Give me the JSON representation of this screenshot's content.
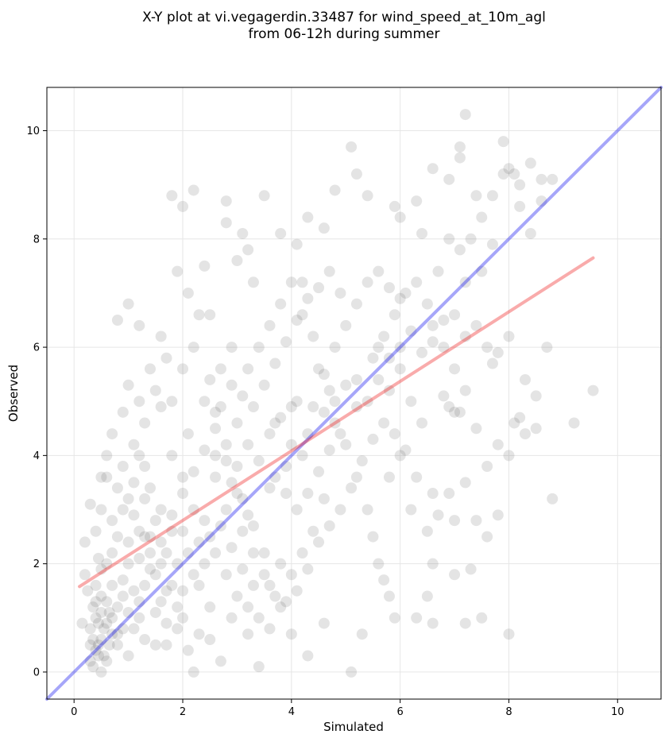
{
  "chart_data": {
    "type": "scatter",
    "title": "X-Y plot at vi.vegagerdin.33487 for wind_speed_at_10m_agl",
    "subtitle": "from 06-12h during summer",
    "xlabel": "Simulated",
    "ylabel": "Observed",
    "xlim": [
      -0.5,
      10.8
    ],
    "ylim": [
      -0.5,
      10.8
    ],
    "xticks": [
      0,
      2,
      4,
      6,
      8,
      10
    ],
    "yticks": [
      0,
      2,
      4,
      6,
      8,
      10
    ],
    "grid": true,
    "legend": "none",
    "point_color": "#555555",
    "identity_line": {
      "from": [
        -0.5,
        -0.5
      ],
      "to": [
        10.8,
        10.8
      ],
      "color": "#0000ee"
    },
    "regression_line": {
      "from": [
        0.1,
        1.58
      ],
      "to": [
        9.55,
        7.65
      ],
      "color": "#ee0000"
    },
    "points": [
      [
        0.3,
        0.8
      ],
      [
        0.4,
        1.0
      ],
      [
        0.5,
        0.6
      ],
      [
        0.45,
        0.9
      ],
      [
        0.35,
        1.2
      ],
      [
        0.5,
        1.4
      ],
      [
        0.6,
        0.9
      ],
      [
        0.4,
        0.4
      ],
      [
        0.3,
        0.2
      ],
      [
        0.55,
        0.3
      ],
      [
        0.2,
        1.8
      ],
      [
        0.25,
        1.5
      ],
      [
        0.45,
        2.1
      ],
      [
        0.6,
        2.0
      ],
      [
        0.7,
        1.6
      ],
      [
        0.8,
        1.2
      ],
      [
        0.9,
        0.8
      ],
      [
        0.65,
        0.5
      ],
      [
        0.35,
        0.1
      ],
      [
        0.5,
        0.0
      ],
      [
        0.15,
        0.9
      ],
      [
        0.4,
        2.6
      ],
      [
        0.5,
        3.0
      ],
      [
        0.7,
        2.8
      ],
      [
        0.8,
        3.4
      ],
      [
        0.9,
        3.8
      ],
      [
        1.0,
        3.2
      ],
      [
        0.6,
        3.6
      ],
      [
        0.3,
        3.1
      ],
      [
        0.2,
        2.4
      ],
      [
        1.0,
        2.0
      ],
      [
        1.1,
        1.5
      ],
      [
        1.2,
        1.0
      ],
      [
        1.3,
        0.6
      ],
      [
        1.0,
        0.3
      ],
      [
        1.2,
        2.6
      ],
      [
        1.4,
        2.2
      ],
      [
        1.5,
        1.8
      ],
      [
        1.6,
        1.3
      ],
      [
        1.7,
        0.9
      ],
      [
        1.4,
        3.4
      ],
      [
        1.6,
        3.0
      ],
      [
        1.8,
        2.6
      ],
      [
        1.9,
        2.0
      ],
      [
        2.0,
        1.5
      ],
      [
        1.8,
        4.0
      ],
      [
        2.0,
        3.6
      ],
      [
        2.2,
        3.0
      ],
      [
        2.3,
        2.4
      ],
      [
        2.1,
        4.4
      ],
      [
        1.3,
        4.6
      ],
      [
        1.5,
        5.2
      ],
      [
        1.7,
        5.8
      ],
      [
        1.2,
        6.4
      ],
      [
        1.0,
        6.8
      ],
      [
        0.8,
        6.5
      ],
      [
        1.6,
        6.2
      ],
      [
        1.9,
        7.4
      ],
      [
        2.1,
        7.0
      ],
      [
        2.3,
        6.6
      ],
      [
        2.5,
        5.4
      ],
      [
        2.6,
        4.8
      ],
      [
        2.8,
        4.2
      ],
      [
        3.0,
        3.8
      ],
      [
        3.1,
        3.2
      ],
      [
        3.3,
        2.7
      ],
      [
        3.5,
        2.2
      ],
      [
        3.6,
        1.6
      ],
      [
        3.8,
        1.2
      ],
      [
        2.9,
        1.0
      ],
      [
        2.5,
        0.6
      ],
      [
        2.7,
        0.2
      ],
      [
        3.2,
        0.7
      ],
      [
        3.4,
        0.1
      ],
      [
        4.0,
        0.7
      ],
      [
        4.3,
        0.3
      ],
      [
        4.6,
        0.9
      ],
      [
        5.1,
        0.0
      ],
      [
        5.3,
        0.7
      ],
      [
        2.2,
        0.0
      ],
      [
        3.2,
        5.6
      ],
      [
        3.4,
        6.0
      ],
      [
        3.6,
        6.4
      ],
      [
        3.8,
        6.8
      ],
      [
        4.0,
        7.2
      ],
      [
        4.2,
        6.6
      ],
      [
        4.4,
        6.2
      ],
      [
        4.5,
        5.6
      ],
      [
        4.7,
        5.2
      ],
      [
        4.8,
        4.6
      ],
      [
        5.0,
        4.2
      ],
      [
        5.2,
        3.6
      ],
      [
        5.4,
        3.0
      ],
      [
        5.5,
        2.5
      ],
      [
        5.6,
        2.0
      ],
      [
        5.8,
        1.4
      ],
      [
        5.9,
        1.0
      ],
      [
        4.0,
        4.2
      ],
      [
        4.2,
        4.0
      ],
      [
        4.3,
        4.4
      ],
      [
        3.9,
        3.8
      ],
      [
        3.7,
        4.6
      ],
      [
        4.1,
        5.0
      ],
      [
        4.6,
        3.2
      ],
      [
        4.4,
        2.6
      ],
      [
        4.2,
        2.2
      ],
      [
        4.0,
        1.8
      ],
      [
        3.8,
        2.0
      ],
      [
        3.6,
        3.4
      ],
      [
        3.4,
        3.9
      ],
      [
        5.2,
        5.4
      ],
      [
        5.5,
        5.8
      ],
      [
        5.7,
        6.2
      ],
      [
        5.9,
        6.6
      ],
      [
        6.1,
        7.0
      ],
      [
        6.3,
        7.2
      ],
      [
        6.5,
        6.8
      ],
      [
        6.6,
        6.4
      ],
      [
        6.8,
        6.0
      ],
      [
        7.0,
        5.6
      ],
      [
        6.2,
        5.0
      ],
      [
        6.4,
        4.6
      ],
      [
        6.0,
        4.0
      ],
      [
        5.8,
        3.6
      ],
      [
        6.2,
        3.0
      ],
      [
        6.5,
        2.6
      ],
      [
        6.6,
        2.0
      ],
      [
        6.5,
        1.4
      ],
      [
        6.3,
        1.0
      ],
      [
        6.6,
        0.9
      ],
      [
        7.0,
        4.8
      ],
      [
        7.2,
        5.2
      ],
      [
        7.4,
        4.5
      ],
      [
        7.6,
        3.8
      ],
      [
        7.8,
        4.2
      ],
      [
        8.0,
        4.0
      ],
      [
        8.1,
        4.6
      ],
      [
        8.2,
        4.7
      ],
      [
        8.3,
        4.4
      ],
      [
        8.5,
        4.5
      ],
      [
        7.0,
        6.6
      ],
      [
        7.2,
        6.2
      ],
      [
        7.4,
        6.4
      ],
      [
        7.6,
        6.0
      ],
      [
        7.8,
        5.9
      ],
      [
        8.0,
        6.2
      ],
      [
        8.3,
        5.4
      ],
      [
        8.5,
        5.1
      ],
      [
        8.7,
        6.0
      ],
      [
        7.7,
        5.7
      ],
      [
        7.1,
        7.8
      ],
      [
        7.3,
        8.0
      ],
      [
        7.5,
        8.4
      ],
      [
        7.7,
        8.8
      ],
      [
        7.9,
        9.2
      ],
      [
        8.0,
        9.3
      ],
      [
        8.2,
        9.0
      ],
      [
        8.4,
        9.4
      ],
      [
        8.6,
        9.1
      ],
      [
        8.8,
        9.1
      ],
      [
        7.1,
        9.5
      ],
      [
        7.1,
        9.7
      ],
      [
        7.2,
        10.3
      ],
      [
        7.9,
        9.8
      ],
      [
        8.1,
        9.2
      ],
      [
        8.2,
        8.6
      ],
      [
        8.4,
        8.1
      ],
      [
        8.6,
        8.7
      ],
      [
        7.4,
        8.8
      ],
      [
        6.9,
        9.1
      ],
      [
        6.6,
        9.3
      ],
      [
        6.9,
        8.0
      ],
      [
        7.2,
        7.2
      ],
      [
        7.5,
        7.4
      ],
      [
        7.7,
        7.9
      ],
      [
        6.7,
        7.4
      ],
      [
        6.4,
        8.1
      ],
      [
        6.3,
        8.7
      ],
      [
        6.0,
        8.4
      ],
      [
        5.9,
        8.6
      ],
      [
        5.4,
        8.8
      ],
      [
        5.2,
        9.2
      ],
      [
        5.1,
        9.7
      ],
      [
        4.8,
        8.9
      ],
      [
        4.6,
        8.2
      ],
      [
        4.3,
        8.4
      ],
      [
        4.1,
        7.9
      ],
      [
        3.8,
        8.1
      ],
      [
        3.5,
        8.8
      ],
      [
        3.1,
        8.1
      ],
      [
        2.8,
        8.7
      ],
      [
        2.8,
        8.3
      ],
      [
        2.2,
        8.9
      ],
      [
        2.0,
        8.6
      ],
      [
        1.8,
        8.8
      ],
      [
        2.4,
        7.5
      ],
      [
        3.0,
        7.6
      ],
      [
        3.2,
        7.8
      ],
      [
        3.3,
        7.2
      ],
      [
        2.5,
        6.6
      ],
      [
        2.2,
        6.0
      ],
      [
        2.0,
        5.6
      ],
      [
        1.8,
        5.0
      ],
      [
        2.4,
        5.0
      ],
      [
        2.7,
        5.6
      ],
      [
        2.9,
        6.0
      ],
      [
        3.0,
        4.6
      ],
      [
        3.2,
        4.2
      ],
      [
        2.6,
        3.6
      ],
      [
        2.8,
        3.0
      ],
      [
        2.4,
        2.8
      ],
      [
        2.0,
        2.6
      ],
      [
        1.7,
        2.2
      ],
      [
        1.5,
        2.8
      ],
      [
        1.3,
        3.8
      ],
      [
        1.1,
        4.2
      ],
      [
        0.9,
        4.8
      ],
      [
        0.7,
        4.4
      ],
      [
        0.6,
        4.0
      ],
      [
        0.5,
        3.6
      ],
      [
        1.0,
        5.3
      ],
      [
        1.2,
        5.0
      ],
      [
        1.4,
        5.6
      ],
      [
        1.6,
        4.9
      ],
      [
        2.6,
        4.0
      ],
      [
        2.9,
        3.5
      ],
      [
        3.1,
        2.6
      ],
      [
        3.3,
        2.2
      ],
      [
        3.5,
        1.8
      ],
      [
        3.7,
        1.4
      ],
      [
        2.0,
        1.0
      ],
      [
        1.8,
        1.6
      ],
      [
        2.2,
        1.8
      ],
      [
        2.4,
        2.0
      ],
      [
        2.6,
        2.2
      ],
      [
        2.8,
        1.8
      ],
      [
        3.0,
        1.4
      ],
      [
        3.2,
        1.2
      ],
      [
        3.4,
        1.0
      ],
      [
        3.6,
        0.8
      ],
      [
        0.8,
        0.5
      ],
      [
        0.9,
        1.7
      ],
      [
        1.1,
        2.9
      ],
      [
        1.3,
        2.5
      ],
      [
        1.5,
        1.1
      ],
      [
        1.7,
        0.5
      ],
      [
        1.9,
        0.8
      ],
      [
        2.1,
        0.4
      ],
      [
        2.3,
        0.7
      ],
      [
        2.5,
        1.2
      ],
      [
        4.6,
        4.8
      ],
      [
        4.8,
        5.0
      ],
      [
        5.0,
        5.3
      ],
      [
        5.2,
        4.9
      ],
      [
        5.4,
        5.0
      ],
      [
        5.6,
        5.4
      ],
      [
        5.8,
        5.2
      ],
      [
        6.0,
        5.6
      ],
      [
        4.4,
        4.9
      ],
      [
        4.6,
        5.5
      ],
      [
        4.8,
        6.0
      ],
      [
        5.0,
        6.4
      ],
      [
        5.2,
        6.8
      ],
      [
        5.4,
        7.2
      ],
      [
        5.6,
        7.4
      ],
      [
        5.8,
        7.1
      ],
      [
        6.0,
        6.9
      ],
      [
        4.9,
        7.0
      ],
      [
        4.7,
        7.4
      ],
      [
        4.5,
        7.1
      ],
      [
        5.1,
        3.4
      ],
      [
        5.3,
        3.9
      ],
      [
        5.5,
        4.3
      ],
      [
        5.7,
        4.6
      ],
      [
        4.9,
        3.0
      ],
      [
        4.7,
        2.7
      ],
      [
        4.5,
        2.4
      ],
      [
        4.3,
        1.9
      ],
      [
        4.1,
        1.5
      ],
      [
        3.9,
        1.3
      ],
      [
        6.7,
        2.9
      ],
      [
        6.9,
        3.3
      ],
      [
        7.0,
        2.8
      ],
      [
        7.2,
        3.5
      ],
      [
        7.4,
        2.8
      ],
      [
        7.6,
        2.5
      ],
      [
        7.8,
        2.9
      ],
      [
        7.0,
        1.8
      ],
      [
        7.3,
        1.9
      ],
      [
        7.5,
        1.0
      ],
      [
        9.2,
        4.6
      ],
      [
        9.55,
        5.2
      ],
      [
        8.8,
        3.2
      ],
      [
        8.0,
        0.7
      ],
      [
        7.2,
        0.9
      ],
      [
        6.6,
        3.3
      ],
      [
        6.3,
        3.6
      ],
      [
        6.1,
        4.1
      ],
      [
        5.9,
        4.4
      ],
      [
        5.7,
        1.7
      ],
      [
        4.2,
        7.2
      ],
      [
        4.3,
        6.9
      ],
      [
        4.1,
        6.5
      ],
      [
        3.9,
        6.1
      ],
      [
        3.7,
        5.7
      ],
      [
        3.5,
        5.3
      ],
      [
        3.3,
        4.9
      ],
      [
        3.1,
        5.1
      ],
      [
        2.9,
        5.3
      ],
      [
        2.7,
        4.9
      ],
      [
        0.4,
        1.6
      ],
      [
        0.5,
        1.9
      ],
      [
        0.6,
        1.3
      ],
      [
        0.7,
        1.0
      ],
      [
        0.8,
        0.7
      ],
      [
        0.9,
        1.4
      ],
      [
        1.0,
        1.1
      ],
      [
        1.1,
        0.8
      ],
      [
        1.2,
        1.3
      ],
      [
        1.3,
        1.6
      ],
      [
        0.35,
        0.6
      ],
      [
        0.45,
        0.5
      ],
      [
        0.55,
        0.8
      ],
      [
        0.65,
        1.1
      ],
      [
        0.4,
        1.3
      ],
      [
        0.3,
        0.5
      ],
      [
        0.6,
        0.2
      ],
      [
        0.7,
        0.7
      ],
      [
        0.5,
        1.1
      ],
      [
        0.45,
        0.3
      ],
      [
        1.4,
        1.9
      ],
      [
        1.6,
        2.4
      ],
      [
        1.8,
        2.9
      ],
      [
        2.0,
        3.3
      ],
      [
        2.2,
        3.7
      ],
      [
        2.4,
        4.1
      ],
      [
        2.6,
        4.5
      ],
      [
        2.8,
        3.9
      ],
      [
        3.0,
        3.3
      ],
      [
        3.2,
        2.9
      ],
      [
        1.5,
        0.5
      ],
      [
        1.7,
        1.5
      ],
      [
        1.9,
        1.2
      ],
      [
        2.1,
        2.2
      ],
      [
        2.3,
        1.6
      ],
      [
        2.5,
        2.5
      ],
      [
        2.7,
        2.7
      ],
      [
        2.9,
        2.3
      ],
      [
        3.1,
        1.9
      ],
      [
        3.3,
        1.6
      ],
      [
        3.6,
        4.4
      ],
      [
        3.8,
        4.7
      ],
      [
        4.0,
        4.9
      ],
      [
        3.7,
        3.6
      ],
      [
        3.9,
        3.3
      ],
      [
        4.1,
        3.0
      ],
      [
        4.3,
        3.3
      ],
      [
        4.5,
        3.7
      ],
      [
        4.7,
        4.1
      ],
      [
        4.9,
        4.4
      ],
      [
        6.8,
        5.1
      ],
      [
        6.9,
        4.9
      ],
      [
        7.1,
        4.8
      ],
      [
        6.4,
        5.9
      ],
      [
        6.6,
        6.1
      ],
      [
        6.8,
        6.5
      ],
      [
        6.2,
        6.3
      ],
      [
        6.0,
        6.0
      ],
      [
        5.8,
        5.8
      ],
      [
        5.6,
        6.0
      ],
      [
        1.1,
        3.5
      ],
      [
        1.2,
        4.0
      ],
      [
        0.9,
        3.0
      ],
      [
        0.8,
        2.5
      ],
      [
        0.7,
        2.2
      ],
      [
        1.0,
        2.4
      ],
      [
        1.2,
        2.1
      ],
      [
        1.4,
        2.5
      ],
      [
        1.6,
        2.0
      ],
      [
        1.3,
        3.2
      ]
    ]
  }
}
